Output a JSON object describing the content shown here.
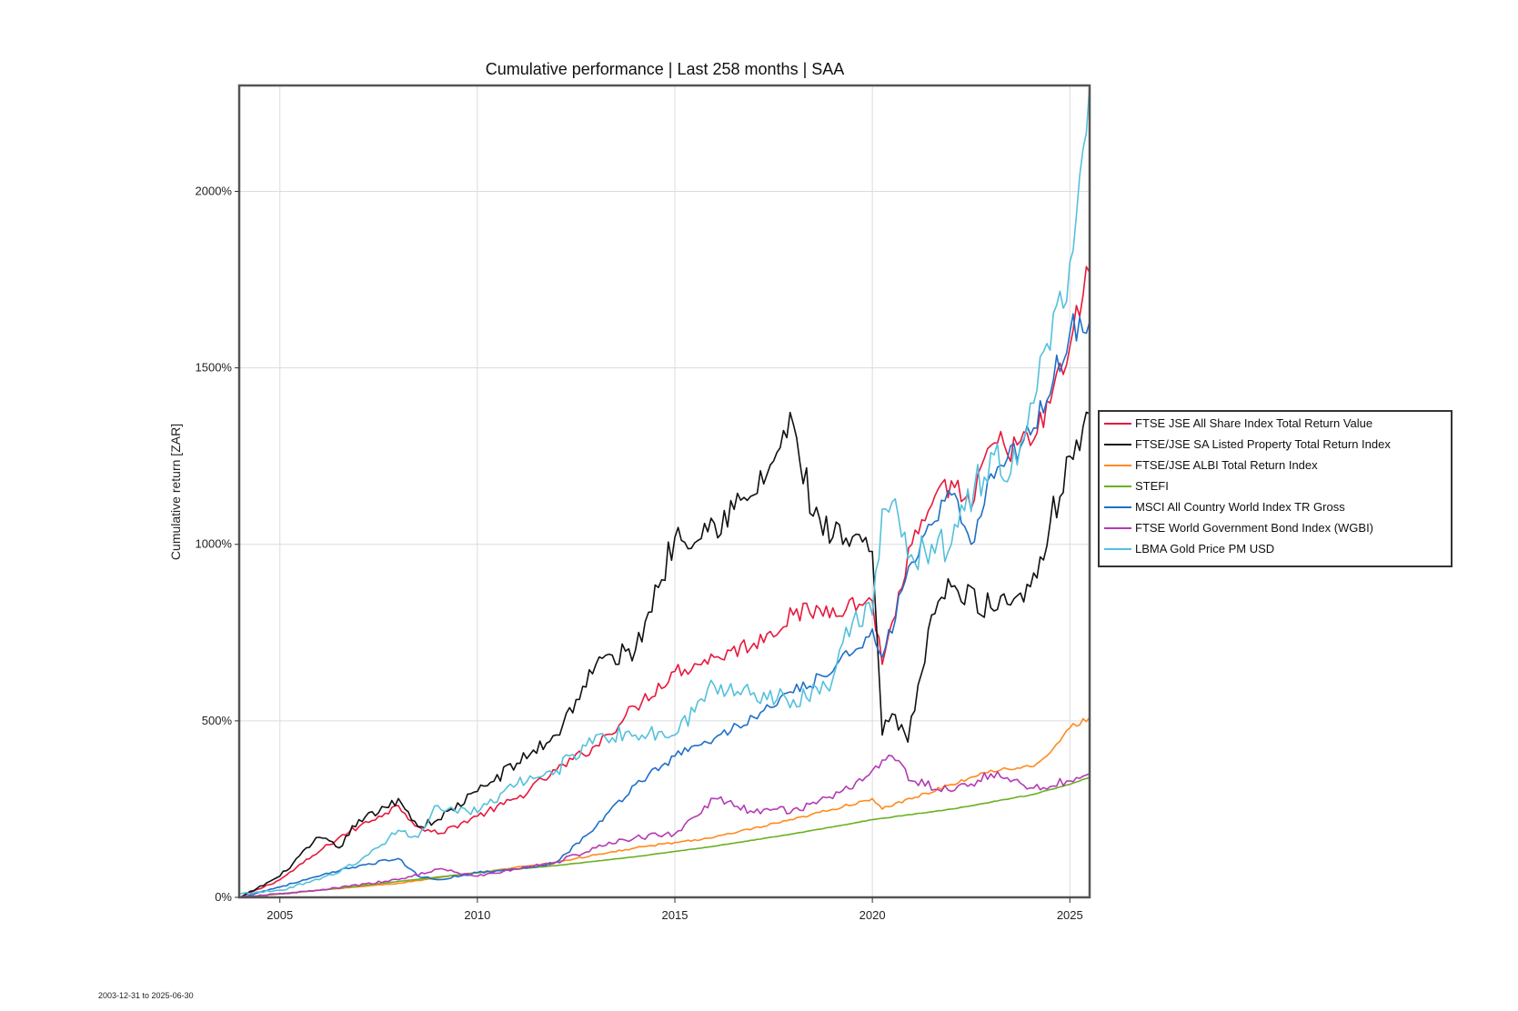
{
  "chart_data": {
    "type": "line",
    "title": "Cumulative performance | Last 258 months | SAA",
    "xlabel": "",
    "ylabel": "Cumulative return [ZAR]",
    "xlim": [
      2003.97,
      2025.5
    ],
    "ylim": [
      0,
      2300
    ],
    "x_ticks": [
      2005,
      2010,
      2015,
      2020,
      2025
    ],
    "x_tick_labels": [
      "2005",
      "2010",
      "2015",
      "2020",
      "2025"
    ],
    "y_ticks": [
      0,
      500,
      1000,
      1500,
      2000
    ],
    "y_tick_labels": [
      "0%",
      "500%",
      "1000%",
      "1500%",
      "2000%"
    ],
    "grid": true,
    "legend_position": "right",
    "footer": "2003-12-31 to 2025-06-30",
    "series": [
      {
        "name": "FTSE JSE All Share Index Total Return Value",
        "color": "#e8183c",
        "x": [
          2004,
          2005,
          2006,
          2006.5,
          2007,
          2007.5,
          2008,
          2008.5,
          2009,
          2010,
          2011,
          2012,
          2013,
          2014,
          2015,
          2016,
          2017,
          2018,
          2019,
          2020,
          2020.25,
          2020.5,
          2021,
          2022,
          2022.5,
          2023,
          2024,
          2024.5,
          2025,
          2025.5
        ],
        "y": [
          0,
          50,
          130,
          170,
          200,
          230,
          260,
          200,
          180,
          230,
          280,
          360,
          430,
          540,
          640,
          680,
          720,
          800,
          820,
          840,
          660,
          780,
          1000,
          1180,
          1100,
          1280,
          1280,
          1400,
          1560,
          1770
        ]
      },
      {
        "name": "FTSE/JSE SA Listed Property Total Return Index",
        "color": "#111111",
        "x": [
          2004,
          2005,
          2006,
          2006.5,
          2007,
          2007.5,
          2008,
          2008.5,
          2009,
          2010,
          2011,
          2012,
          2013,
          2014,
          2015,
          2016,
          2017,
          2018,
          2018.5,
          2019,
          2020,
          2020.25,
          2020.5,
          2020.9,
          2021.5,
          2022,
          2023,
          2024,
          2024.5,
          2025,
          2025.5
        ],
        "y": [
          0,
          60,
          170,
          140,
          220,
          240,
          280,
          200,
          220,
          300,
          380,
          460,
          660,
          700,
          1020,
          1060,
          1140,
          1340,
          1080,
          1020,
          980,
          460,
          520,
          440,
          800,
          880,
          820,
          880,
          1060,
          1250,
          1370
        ]
      },
      {
        "name": "FTSE/JSE ALBI Total Return Index",
        "color": "#ff8a1e",
        "x": [
          2004,
          2006,
          2008,
          2010,
          2012,
          2014,
          2016,
          2018,
          2020,
          2020.25,
          2022,
          2023,
          2024,
          2024.5,
          2025,
          2025.5
        ],
        "y": [
          0,
          20,
          40,
          70,
          100,
          140,
          170,
          220,
          280,
          250,
          320,
          360,
          370,
          410,
          480,
          510
        ]
      },
      {
        "name": "STEFI",
        "color": "#6ab023",
        "x": [
          2004,
          2006,
          2008,
          2010,
          2012,
          2014,
          2016,
          2018,
          2020,
          2022,
          2024,
          2025,
          2025.5
        ],
        "y": [
          0,
          20,
          45,
          70,
          90,
          115,
          145,
          180,
          220,
          250,
          290,
          320,
          340
        ]
      },
      {
        "name": "MSCI All Country World Index TR Gross",
        "color": "#1f6fc8",
        "x": [
          2004,
          2006,
          2007,
          2008,
          2008.5,
          2009,
          2010,
          2011,
          2012,
          2013,
          2014,
          2015,
          2016,
          2017,
          2018,
          2019,
          2020,
          2020.25,
          2021,
          2022,
          2022.5,
          2023,
          2024,
          2025,
          2025.5
        ],
        "y": [
          0,
          60,
          90,
          110,
          60,
          50,
          70,
          80,
          100,
          200,
          320,
          400,
          450,
          510,
          580,
          640,
          760,
          680,
          950,
          1140,
          1000,
          1200,
          1310,
          1600,
          1630
        ]
      },
      {
        "name": "FTSE World Government Bond Index (WGBI)",
        "color": "#b43ab4",
        "x": [
          2004,
          2006,
          2008,
          2009,
          2010,
          2011,
          2012,
          2013,
          2014,
          2015,
          2016,
          2017,
          2018,
          2019,
          2020,
          2020.5,
          2021,
          2022,
          2023,
          2024,
          2025,
          2025.5
        ],
        "y": [
          0,
          20,
          50,
          80,
          60,
          80,
          100,
          140,
          170,
          180,
          280,
          240,
          250,
          280,
          360,
          400,
          330,
          300,
          350,
          310,
          330,
          350
        ]
      },
      {
        "name": "LBMA Gold Price PM USD",
        "color": "#55c0dc",
        "x": [
          2004,
          2005,
          2006,
          2007,
          2008,
          2008.5,
          2009,
          2010,
          2011,
          2012,
          2013,
          2014,
          2015,
          2016,
          2017,
          2018,
          2019,
          2019.5,
          2020,
          2020.25,
          2020.5,
          2020.9,
          2021.5,
          2022,
          2023,
          2023.5,
          2024,
          2024.5,
          2025,
          2025.5
        ],
        "y": [
          10,
          20,
          50,
          100,
          190,
          170,
          260,
          240,
          320,
          360,
          460,
          460,
          460,
          600,
          580,
          560,
          620,
          780,
          800,
          1100,
          1120,
          960,
          1000,
          1000,
          1260,
          1200,
          1400,
          1550,
          1800,
          2300
        ]
      }
    ]
  }
}
